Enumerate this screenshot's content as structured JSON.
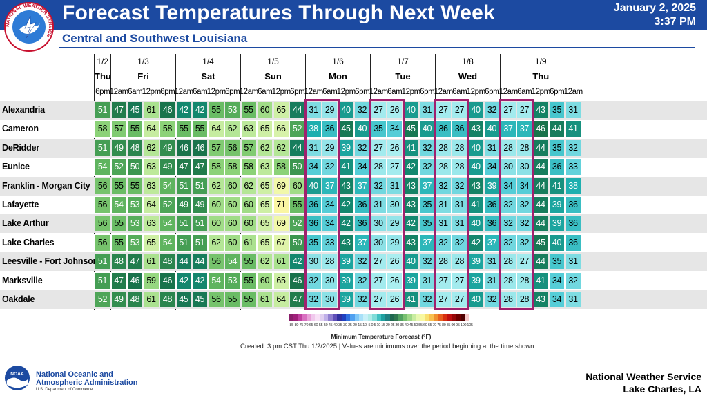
{
  "header": {
    "title": "Forecast Temperatures Through Next Week",
    "date": "January 2, 2025",
    "time": "3:37 PM",
    "subtitle": "Central and Southwest Louisiana",
    "logo_text": "NATIONAL WEATHER SERVICE",
    "colors": {
      "banner": "#1c4aa1",
      "highlight_box": "#a0206e"
    }
  },
  "columns": {
    "dates": [
      "1/2",
      "1/3",
      "1/4",
      "1/5",
      "1/6",
      "1/7",
      "1/8",
      "1/9"
    ],
    "days": [
      "Thu",
      "Fri",
      "Sat",
      "Sun",
      "Mon",
      "Tue",
      "Wed",
      "Thu"
    ],
    "day_slots": [
      1,
      4,
      4,
      4,
      4,
      4,
      4,
      5
    ],
    "times": [
      "6pm",
      "12am",
      "6am",
      "12pm",
      "6pm",
      "12am",
      "6am",
      "12pm",
      "6pm",
      "12am",
      "6am",
      "12pm",
      "6pm",
      "12am",
      "6am",
      "12pm",
      "6pm",
      "12am",
      "6am",
      "12pm",
      "6pm",
      "12am",
      "6am",
      "12pm",
      "6pm",
      "12am",
      "6am",
      "12pm",
      "6pm",
      "12am"
    ]
  },
  "rows": [
    {
      "location": "Alexandria",
      "values": [
        51,
        47,
        45,
        61,
        46,
        42,
        42,
        55,
        53,
        55,
        60,
        65,
        44,
        31,
        29,
        40,
        32,
        27,
        26,
        40,
        31,
        27,
        27,
        40,
        32,
        27,
        27,
        43,
        35,
        31
      ]
    },
    {
      "location": "Cameron",
      "values": [
        58,
        57,
        55,
        64,
        58,
        55,
        55,
        64,
        62,
        63,
        65,
        66,
        52,
        38,
        36,
        45,
        40,
        35,
        34,
        45,
        40,
        36,
        36,
        43,
        40,
        37,
        37,
        46,
        44,
        41
      ]
    },
    {
      "location": "DeRidder",
      "values": [
        51,
        49,
        48,
        62,
        49,
        46,
        46,
        57,
        56,
        57,
        62,
        62,
        44,
        31,
        29,
        39,
        32,
        27,
        26,
        41,
        32,
        28,
        28,
        40,
        31,
        28,
        28,
        44,
        35,
        32
      ]
    },
    {
      "location": "Eunice",
      "values": [
        54,
        52,
        50,
        63,
        49,
        47,
        47,
        58,
        58,
        58,
        63,
        58,
        50,
        34,
        32,
        41,
        34,
        28,
        27,
        42,
        32,
        28,
        28,
        40,
        34,
        30,
        30,
        44,
        36,
        33
      ]
    },
    {
      "location": "Franklin - Morgan City",
      "values": [
        56,
        55,
        55,
        63,
        54,
        51,
        51,
        62,
        60,
        62,
        65,
        69,
        60,
        40,
        37,
        43,
        37,
        32,
        31,
        43,
        37,
        32,
        32,
        43,
        39,
        34,
        34,
        44,
        41,
        38
      ]
    },
    {
      "location": "Lafayette",
      "values": [
        56,
        54,
        53,
        64,
        52,
        49,
        49,
        60,
        60,
        60,
        65,
        71,
        55,
        36,
        34,
        42,
        36,
        31,
        30,
        43,
        35,
        31,
        31,
        41,
        36,
        32,
        32,
        44,
        39,
        36
      ]
    },
    {
      "location": "Lake Arthur",
      "values": [
        56,
        55,
        53,
        63,
        54,
        51,
        51,
        60,
        60,
        60,
        65,
        69,
        52,
        36,
        34,
        42,
        36,
        30,
        29,
        42,
        35,
        31,
        31,
        40,
        36,
        32,
        32,
        44,
        39,
        36
      ]
    },
    {
      "location": "Lake Charles",
      "values": [
        56,
        55,
        53,
        65,
        54,
        51,
        51,
        62,
        60,
        61,
        65,
        67,
        50,
        35,
        33,
        43,
        37,
        30,
        29,
        43,
        37,
        32,
        32,
        42,
        37,
        32,
        32,
        45,
        40,
        36
      ]
    },
    {
      "location": "Leesville - Fort Johnson",
      "values": [
        51,
        48,
        47,
        61,
        48,
        44,
        44,
        56,
        54,
        55,
        62,
        61,
        42,
        30,
        28,
        39,
        32,
        27,
        26,
        40,
        32,
        28,
        28,
        39,
        31,
        28,
        27,
        44,
        35,
        31
      ]
    },
    {
      "location": "Marksville",
      "values": [
        51,
        47,
        46,
        59,
        46,
        42,
        42,
        54,
        53,
        55,
        60,
        65,
        46,
        32,
        30,
        39,
        32,
        27,
        26,
        39,
        31,
        27,
        27,
        39,
        31,
        28,
        28,
        41,
        34,
        32
      ]
    },
    {
      "location": "Oakdale",
      "values": [
        52,
        49,
        48,
        61,
        48,
        45,
        45,
        56,
        55,
        55,
        61,
        64,
        47,
        32,
        30,
        39,
        32,
        27,
        26,
        41,
        32,
        27,
        27,
        40,
        32,
        28,
        28,
        43,
        34,
        31
      ]
    }
  ],
  "highlight_groups": [
    [
      13,
      14
    ],
    [
      17,
      18
    ],
    [
      21,
      22
    ],
    [
      25,
      26
    ]
  ],
  "legend": {
    "ticks": "-85-80-75-70-65-60-55-50-45-40-35-30-25-20-15-10 -5 0 5 10 15 20 25 30 35 40 45 50 55 60 65 70 75 80 85 90 95 100 105 110 115 120",
    "title": "Minimum Temperature Forecast (°F)"
  },
  "created": "Created: 3 pm CST Thu 1/2/2025  |  Values are minimums over the period beginning at the time shown.",
  "footer": {
    "noaa_line1": "National Oceanic and",
    "noaa_line2": "Atmospheric Administration",
    "noaa_dept": "U.S. Department of Commerce",
    "noaa_badge": "NOAA",
    "nws_line1": "National Weather Service",
    "nws_line2": "Lake Charles, LA"
  }
}
